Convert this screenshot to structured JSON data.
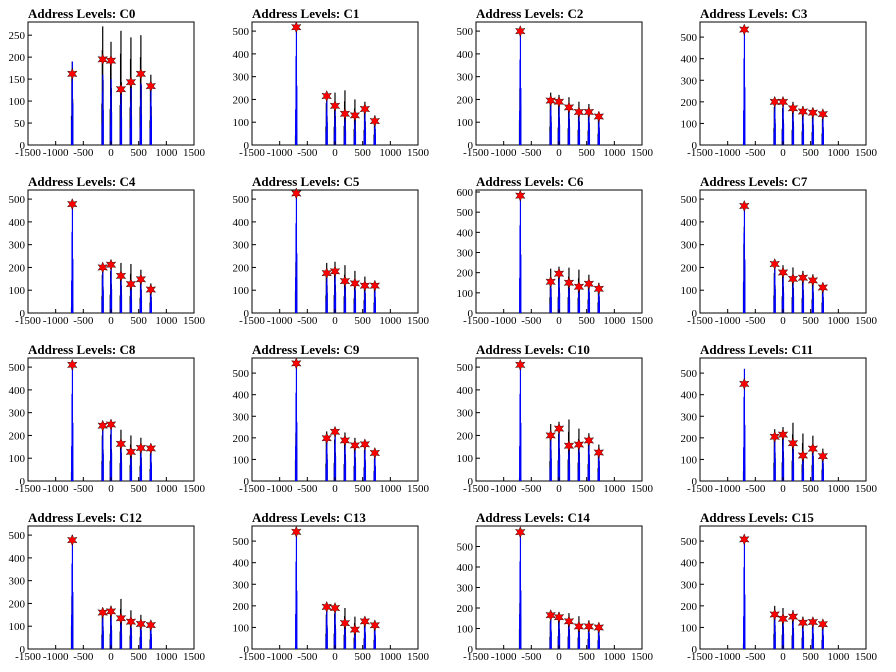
{
  "figure": {
    "xticks": [
      "-1500",
      "-1000",
      "-500",
      "0",
      "500",
      "1000",
      "1500"
    ],
    "xlim": [
      -1500,
      1500
    ],
    "colors": {
      "black_hist": "#000000",
      "blue_hist": "#0000ff",
      "marker": "#ff0000"
    }
  },
  "chart_data": [
    {
      "type": "histogram",
      "title": "Address Levels: C0",
      "ylim": [
        0,
        280
      ],
      "yticks": [
        "0",
        "50",
        "100",
        "150",
        "200",
        "250"
      ],
      "peaks_x": [
        -700,
        -150,
        0,
        180,
        360,
        540,
        720
      ],
      "black_heights": [
        190,
        270,
        235,
        260,
        245,
        250,
        160
      ],
      "blue_heights": [
        190,
        160,
        150,
        125,
        130,
        140,
        130
      ],
      "markers": [
        [
          -700,
          162
        ],
        [
          -150,
          195
        ],
        [
          0,
          192
        ],
        [
          180,
          127
        ],
        [
          360,
          143
        ],
        [
          540,
          162
        ],
        [
          720,
          134
        ]
      ]
    },
    {
      "type": "histogram",
      "title": "Address Levels: C1",
      "ylim": [
        0,
        540
      ],
      "yticks": [
        "0",
        "100",
        "200",
        "300",
        "400",
        "500"
      ],
      "peaks_x": [
        -700,
        -150,
        0,
        180,
        360,
        540,
        720
      ],
      "black_heights": [
        120,
        230,
        230,
        240,
        200,
        190,
        130
      ],
      "blue_heights": [
        520,
        200,
        160,
        130,
        120,
        150,
        100
      ],
      "markers": [
        [
          -700,
          517
        ],
        [
          -150,
          215
        ],
        [
          0,
          172
        ],
        [
          180,
          137
        ],
        [
          360,
          130
        ],
        [
          540,
          158
        ],
        [
          720,
          105
        ]
      ]
    },
    {
      "type": "histogram",
      "title": "Address Levels: C2",
      "ylim": [
        0,
        540
      ],
      "yticks": [
        "0",
        "100",
        "200",
        "300",
        "400",
        "500"
      ],
      "peaks_x": [
        -700,
        -150,
        0,
        180,
        360,
        540,
        720
      ],
      "black_heights": [
        310,
        230,
        220,
        210,
        190,
        180,
        140
      ],
      "blue_heights": [
        500,
        200,
        180,
        160,
        140,
        140,
        120
      ],
      "markers": [
        [
          -700,
          500
        ],
        [
          -150,
          195
        ],
        [
          0,
          190
        ],
        [
          180,
          165
        ],
        [
          360,
          145
        ],
        [
          540,
          145
        ],
        [
          720,
          125
        ]
      ]
    },
    {
      "type": "histogram",
      "title": "Address Levels: C3",
      "ylim": [
        0,
        570
      ],
      "yticks": [
        "0",
        "100",
        "200",
        "300",
        "400",
        "500"
      ],
      "peaks_x": [
        -700,
        -150,
        0,
        180,
        360,
        540,
        720
      ],
      "black_heights": [
        40,
        220,
        215,
        200,
        180,
        170,
        150
      ],
      "blue_heights": [
        535,
        200,
        200,
        170,
        150,
        145,
        140
      ],
      "markers": [
        [
          -700,
          535
        ],
        [
          -150,
          200
        ],
        [
          0,
          200
        ],
        [
          180,
          170
        ],
        [
          360,
          155
        ],
        [
          540,
          150
        ],
        [
          720,
          143
        ]
      ]
    },
    {
      "type": "histogram",
      "title": "Address Levels: C4",
      "ylim": [
        0,
        540
      ],
      "yticks": [
        "0",
        "100",
        "200",
        "300",
        "400",
        "500"
      ],
      "peaks_x": [
        -700,
        -150,
        0,
        180,
        360,
        540,
        720
      ],
      "black_heights": [
        70,
        210,
        230,
        220,
        215,
        190,
        130
      ],
      "blue_heights": [
        475,
        200,
        210,
        160,
        130,
        145,
        100
      ],
      "markers": [
        [
          -700,
          478
        ],
        [
          -150,
          200
        ],
        [
          0,
          212
        ],
        [
          180,
          163
        ],
        [
          360,
          127
        ],
        [
          540,
          148
        ],
        [
          720,
          103
        ]
      ]
    },
    {
      "type": "histogram",
      "title": "Address Levels: C5",
      "ylim": [
        0,
        540
      ],
      "yticks": [
        "0",
        "100",
        "200",
        "300",
        "400",
        "500"
      ],
      "peaks_x": [
        -700,
        -150,
        0,
        180,
        360,
        540,
        720
      ],
      "black_heights": [
        280,
        220,
        225,
        210,
        185,
        160,
        130
      ],
      "blue_heights": [
        525,
        175,
        185,
        140,
        130,
        120,
        120
      ],
      "markers": [
        [
          -700,
          525
        ],
        [
          -150,
          175
        ],
        [
          0,
          183
        ],
        [
          180,
          140
        ],
        [
          360,
          130
        ],
        [
          540,
          120
        ],
        [
          720,
          120
        ]
      ]
    },
    {
      "type": "histogram",
      "title": "Address Levels: C6",
      "ylim": [
        0,
        610
      ],
      "yticks": [
        "0",
        "100",
        "200",
        "300",
        "400",
        "500",
        "600"
      ],
      "peaks_x": [
        -700,
        -150,
        0,
        180,
        360,
        540,
        720
      ],
      "black_heights": [
        20,
        220,
        230,
        225,
        215,
        190,
        150
      ],
      "blue_heights": [
        580,
        160,
        200,
        150,
        130,
        145,
        120
      ],
      "markers": [
        [
          -700,
          582
        ],
        [
          -150,
          155
        ],
        [
          0,
          195
        ],
        [
          180,
          150
        ],
        [
          360,
          130
        ],
        [
          540,
          145
        ],
        [
          720,
          120
        ]
      ]
    },
    {
      "type": "histogram",
      "title": "Address Levels: C7",
      "ylim": [
        0,
        540
      ],
      "yticks": [
        "0",
        "100",
        "200",
        "300",
        "400",
        "500"
      ],
      "peaks_x": [
        -700,
        -150,
        0,
        180,
        360,
        540,
        720
      ],
      "black_heights": [
        380,
        220,
        210,
        200,
        185,
        170,
        130
      ],
      "blue_heights": [
        470,
        210,
        180,
        150,
        155,
        140,
        110
      ],
      "markers": [
        [
          -700,
          470
        ],
        [
          -150,
          215
        ],
        [
          0,
          178
        ],
        [
          180,
          150
        ],
        [
          360,
          155
        ],
        [
          540,
          143
        ],
        [
          720,
          112
        ]
      ]
    },
    {
      "type": "histogram",
      "title": "Address Levels: C8",
      "ylim": [
        0,
        540
      ],
      "yticks": [
        "0",
        "100",
        "200",
        "300",
        "400",
        "500"
      ],
      "peaks_x": [
        -700,
        -150,
        0,
        180,
        360,
        540,
        720
      ],
      "black_heights": [
        110,
        250,
        255,
        225,
        200,
        190,
        150
      ],
      "blue_heights": [
        510,
        240,
        250,
        165,
        130,
        145,
        145
      ],
      "markers": [
        [
          -700,
          510
        ],
        [
          -150,
          243
        ],
        [
          0,
          248
        ],
        [
          180,
          163
        ],
        [
          360,
          128
        ],
        [
          540,
          145
        ],
        [
          720,
          143
        ]
      ]
    },
    {
      "type": "histogram",
      "title": "Address Levels: C9",
      "ylim": [
        0,
        570
      ],
      "yticks": [
        "0",
        "100",
        "200",
        "300",
        "400",
        "500"
      ],
      "peaks_x": [
        -700,
        -150,
        0,
        180,
        360,
        540,
        720
      ],
      "black_heights": [
        280,
        230,
        240,
        225,
        200,
        180,
        130
      ],
      "blue_heights": [
        545,
        200,
        230,
        190,
        170,
        170,
        130
      ],
      "markers": [
        [
          -700,
          545
        ],
        [
          -150,
          198
        ],
        [
          0,
          228
        ],
        [
          180,
          188
        ],
        [
          360,
          165
        ],
        [
          540,
          170
        ],
        [
          720,
          130
        ]
      ]
    },
    {
      "type": "histogram",
      "title": "Address Levels: C10",
      "ylim": [
        0,
        540
      ],
      "yticks": [
        "0",
        "100",
        "200",
        "300",
        "400",
        "500"
      ],
      "peaks_x": [
        -700,
        -150,
        0,
        180,
        360,
        540,
        720
      ],
      "black_heights": [
        40,
        250,
        260,
        270,
        230,
        210,
        160
      ],
      "blue_heights": [
        510,
        200,
        230,
        155,
        160,
        180,
        125
      ],
      "markers": [
        [
          -700,
          510
        ],
        [
          -150,
          200
        ],
        [
          0,
          230
        ],
        [
          180,
          155
        ],
        [
          360,
          160
        ],
        [
          540,
          178
        ],
        [
          720,
          125
        ]
      ]
    },
    {
      "type": "histogram",
      "title": "Address Levels: C11",
      "ylim": [
        0,
        570
      ],
      "yticks": [
        "0",
        "100",
        "200",
        "300",
        "400",
        "500"
      ],
      "peaks_x": [
        -700,
        -150,
        0,
        180,
        360,
        540,
        720
      ],
      "black_heights": [
        130,
        240,
        250,
        270,
        220,
        210,
        150
      ],
      "blue_heights": [
        520,
        210,
        215,
        175,
        120,
        150,
        115
      ],
      "markers": [
        [
          -700,
          450
        ],
        [
          -150,
          205
        ],
        [
          0,
          215
        ],
        [
          180,
          175
        ],
        [
          360,
          118
        ],
        [
          540,
          150
        ],
        [
          720,
          115
        ]
      ]
    },
    {
      "type": "histogram",
      "title": "Address Levels: C12",
      "ylim": [
        0,
        540
      ],
      "yticks": [
        "0",
        "100",
        "200",
        "300",
        "400",
        "500"
      ],
      "peaks_x": [
        -700,
        -150,
        0,
        180,
        360,
        540,
        720
      ],
      "black_heights": [
        290,
        180,
        190,
        220,
        170,
        150,
        120
      ],
      "blue_heights": [
        500,
        160,
        165,
        135,
        120,
        110,
        105
      ],
      "markers": [
        [
          -700,
          478
        ],
        [
          -150,
          160
        ],
        [
          0,
          165
        ],
        [
          180,
          135
        ],
        [
          360,
          120
        ],
        [
          540,
          110
        ],
        [
          720,
          105
        ]
      ]
    },
    {
      "type": "histogram",
      "title": "Address Levels: C13",
      "ylim": [
        0,
        570
      ],
      "yticks": [
        "0",
        "100",
        "200",
        "300",
        "400",
        "500"
      ],
      "peaks_x": [
        -700,
        -150,
        0,
        180,
        360,
        540,
        720
      ],
      "black_heights": [
        20,
        200,
        205,
        190,
        150,
        140,
        120
      ],
      "blue_heights": [
        540,
        195,
        190,
        120,
        90,
        130,
        110
      ],
      "markers": [
        [
          -700,
          543
        ],
        [
          -150,
          195
        ],
        [
          0,
          190
        ],
        [
          180,
          120
        ],
        [
          360,
          90
        ],
        [
          540,
          128
        ],
        [
          720,
          110
        ]
      ]
    },
    {
      "type": "histogram",
      "title": "Address Levels: C14",
      "ylim": [
        0,
        600
      ],
      "yticks": [
        "0",
        "100",
        "200",
        "300",
        "400",
        "500"
      ],
      "peaks_x": [
        -700,
        -150,
        0,
        180,
        360,
        540,
        720
      ],
      "black_heights": [
        280,
        170,
        180,
        175,
        160,
        140,
        120
      ],
      "blue_heights": [
        570,
        165,
        155,
        135,
        110,
        110,
        105
      ],
      "markers": [
        [
          -700,
          570
        ],
        [
          -150,
          165
        ],
        [
          0,
          155
        ],
        [
          180,
          135
        ],
        [
          360,
          110
        ],
        [
          540,
          110
        ],
        [
          720,
          105
        ]
      ]
    },
    {
      "type": "histogram",
      "title": "Address Levels: C15",
      "ylim": [
        0,
        570
      ],
      "yticks": [
        "0",
        "100",
        "200",
        "300",
        "400",
        "500"
      ],
      "peaks_x": [
        -700,
        -150,
        0,
        180,
        360,
        540,
        720
      ],
      "black_heights": [
        70,
        200,
        190,
        180,
        150,
        130,
        120
      ],
      "blue_heights": [
        505,
        160,
        140,
        150,
        120,
        125,
        115
      ],
      "markers": [
        [
          -700,
          508
        ],
        [
          -150,
          160
        ],
        [
          0,
          140
        ],
        [
          180,
          150
        ],
        [
          360,
          122
        ],
        [
          540,
          125
        ],
        [
          720,
          115
        ]
      ]
    }
  ]
}
